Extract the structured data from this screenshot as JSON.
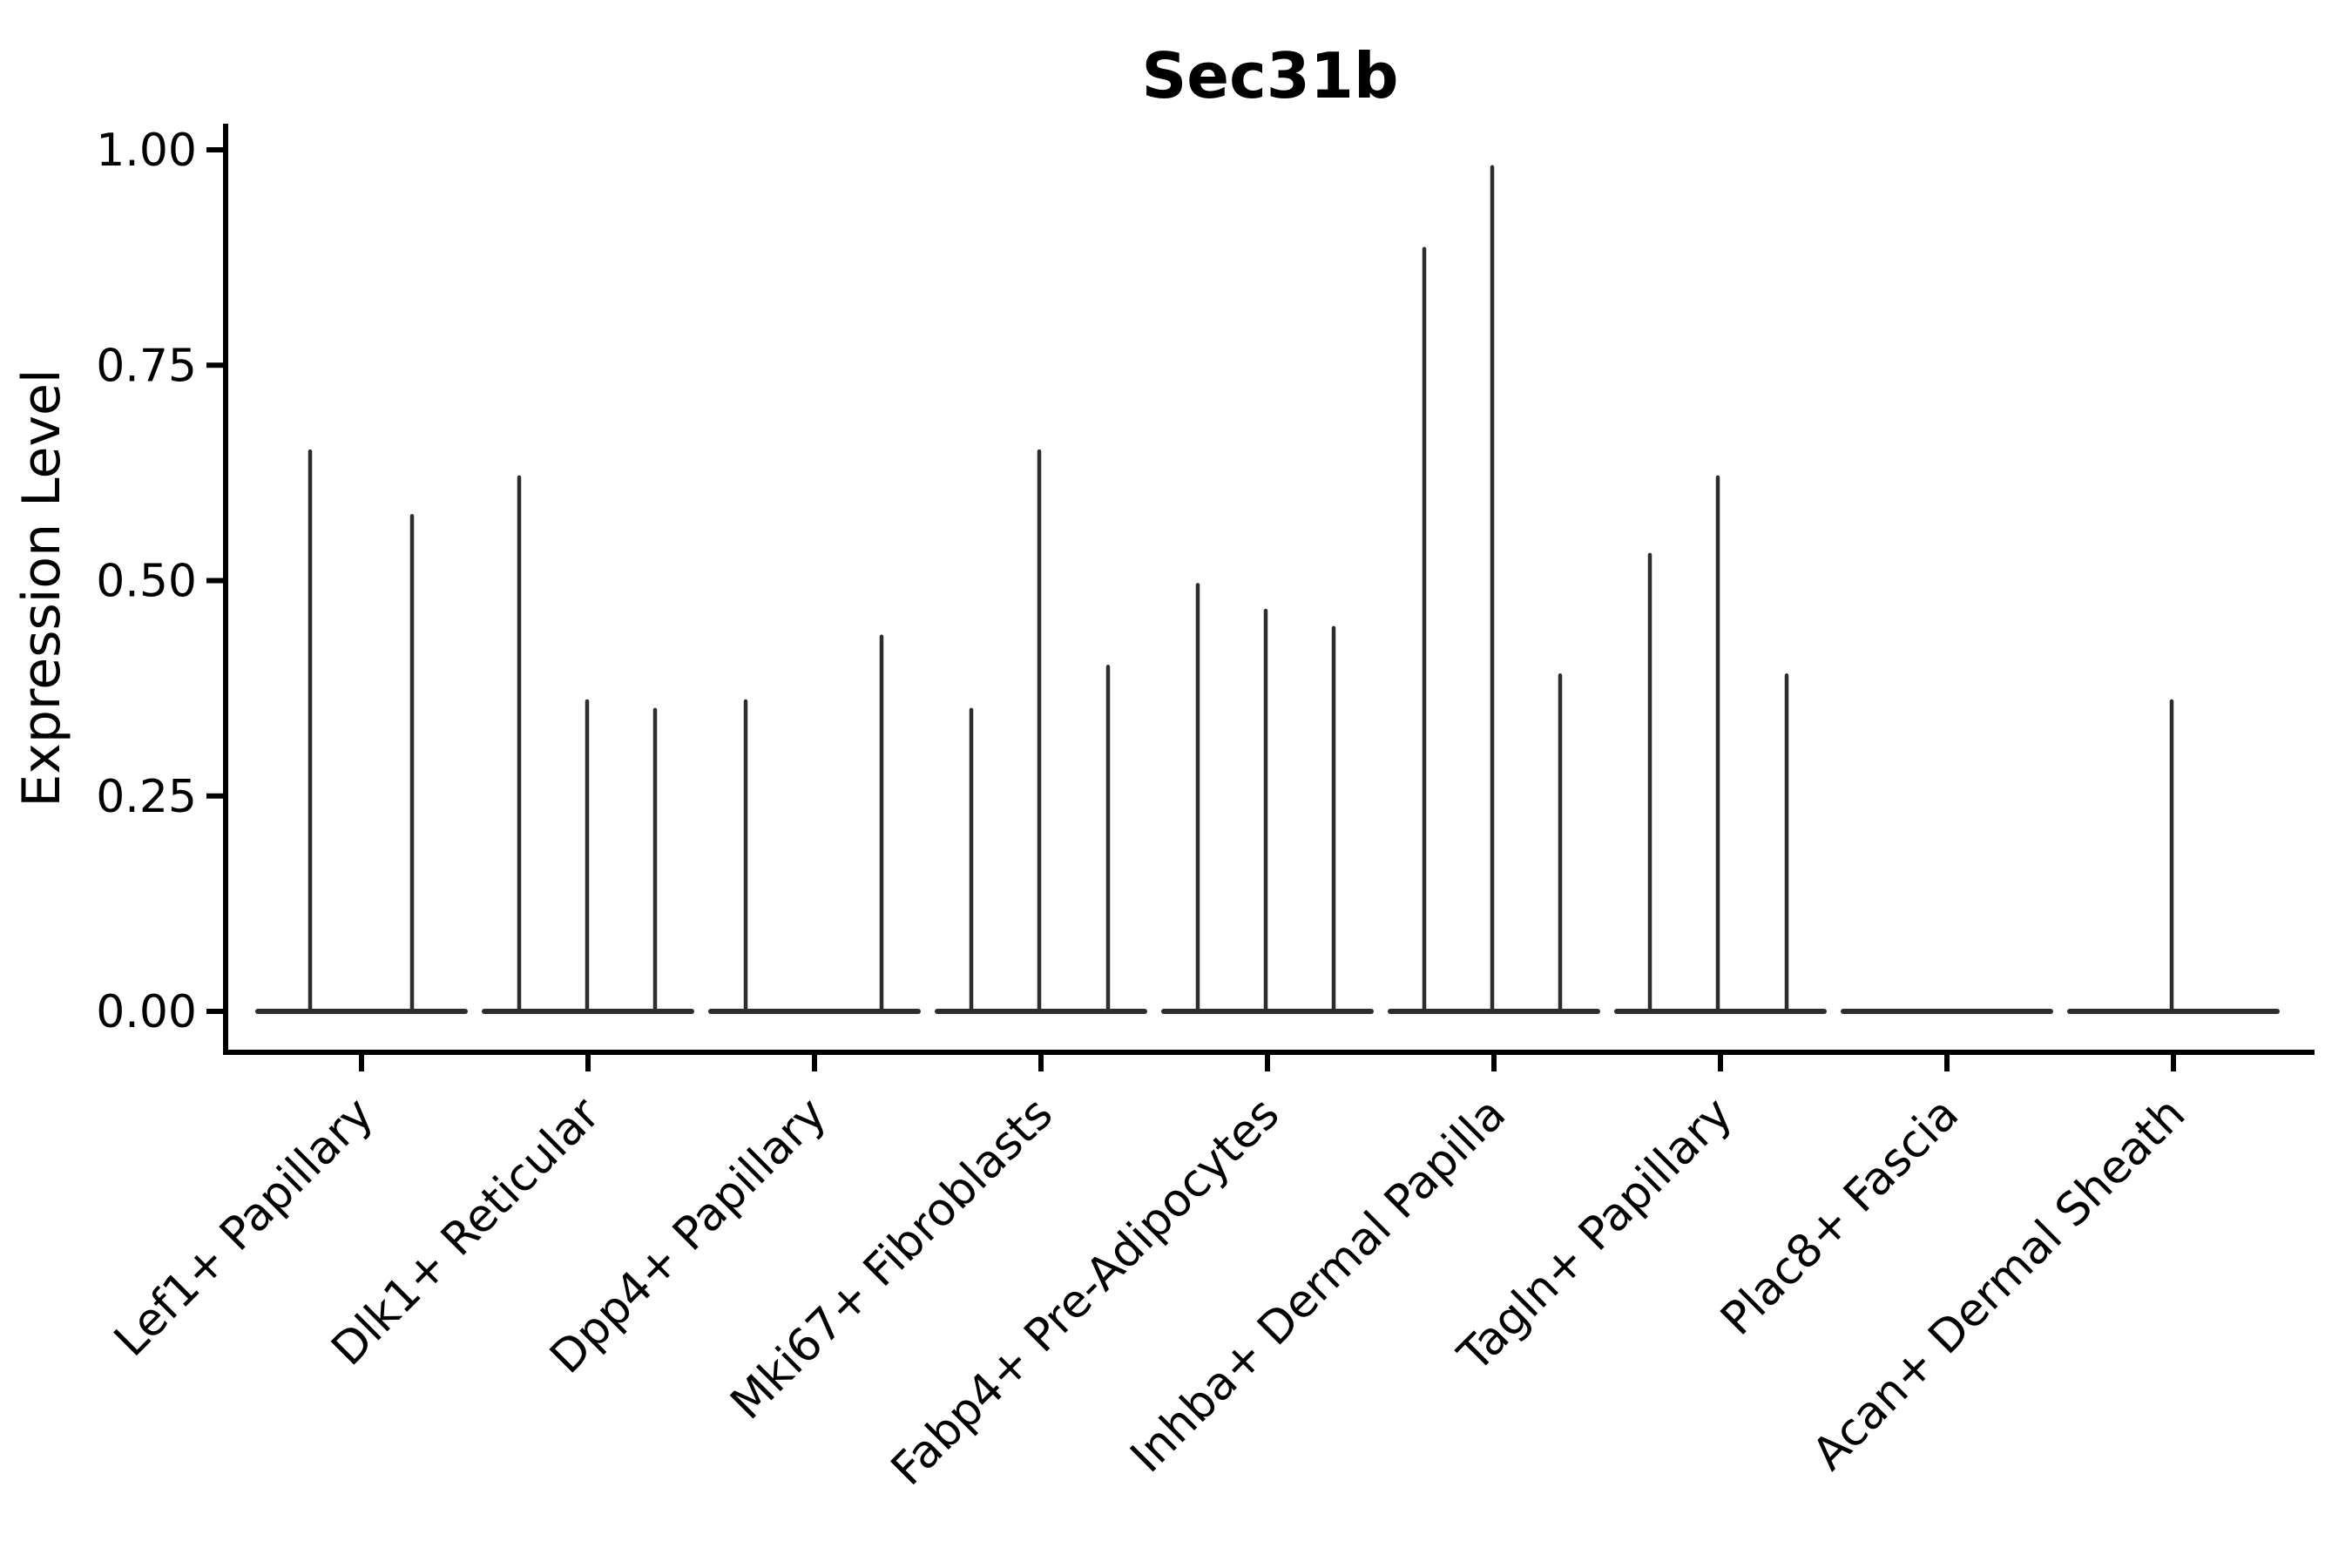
{
  "title": "Sec31b",
  "y_axis": {
    "label": "Expression Level",
    "ticks": [
      {
        "label": "0.00",
        "value": 0.0
      },
      {
        "label": "0.25",
        "value": 0.25
      },
      {
        "label": "0.50",
        "value": 0.5
      },
      {
        "label": "0.75",
        "value": 0.75
      },
      {
        "label": "1.00",
        "value": 1.0
      }
    ]
  },
  "x_axis": {
    "categories": [
      "Lef1+ Papillary",
      "Dlk1+ Reticular",
      "Dpp4+ Papillary",
      "Mki67+ Fibroblasts",
      "Fabp4+ Pre-Adipocytes",
      "Inhba+ Dermal Papilla",
      "Tagln+ Papillary",
      "Plac8+ Fascia",
      "Acan+ Dermal Sheath"
    ]
  },
  "chart_data": {
    "type": "violin",
    "title": "Sec31b",
    "xlabel": "",
    "ylabel": "Expression Level",
    "ylim": [
      0.0,
      1.0
    ],
    "grid": false,
    "legend_position": "none",
    "description": "Collapsed single-cell violins: each category shows a flat density line at expression 0 with thin vertical spikes reaching the peak expression of the few expressing cells.",
    "categories": [
      "Lef1+ Papillary",
      "Dlk1+ Reticular",
      "Dpp4+ Papillary",
      "Mki67+ Fibroblasts",
      "Fabp4+ Pre-Adipocytes",
      "Inhba+ Dermal Papilla",
      "Tagln+ Papillary",
      "Plac8+ Fascia",
      "Acan+ Dermal Sheath"
    ],
    "baseline_value": 0.0,
    "groups": [
      {
        "category": "Lef1+ Papillary",
        "violins": [
          {
            "dx": -59,
            "peak": 0.65
          },
          {
            "dx": 58,
            "peak": 0.575
          }
        ]
      },
      {
        "category": "Dlk1+ Reticular",
        "violins": [
          {
            "dx": -79,
            "peak": 0.62
          },
          {
            "dx": -1,
            "peak": 0.36
          },
          {
            "dx": 77,
            "peak": 0.35
          }
        ]
      },
      {
        "category": "Dpp4+ Papillary",
        "violins": [
          {
            "dx": -79,
            "peak": 0.36
          },
          {
            "dx": 77,
            "peak": 0.435
          }
        ]
      },
      {
        "category": "Mki67+ Fibroblasts",
        "violins": [
          {
            "dx": -80,
            "peak": 0.35
          },
          {
            "dx": -2,
            "peak": 0.65
          },
          {
            "dx": 77,
            "peak": 0.4
          }
        ]
      },
      {
        "category": "Fabp4+ Pre-Adipocytes",
        "violins": [
          {
            "dx": -80,
            "peak": 0.495
          },
          {
            "dx": -2,
            "peak": 0.465
          },
          {
            "dx": 76,
            "peak": 0.445
          }
        ]
      },
      {
        "category": "Inhba+ Dermal Papilla",
        "violins": [
          {
            "dx": -80,
            "peak": 0.885
          },
          {
            "dx": -2,
            "peak": 0.98
          },
          {
            "dx": 76,
            "peak": 0.39
          }
        ]
      },
      {
        "category": "Tagln+ Papillary",
        "violins": [
          {
            "dx": -81,
            "peak": 0.53
          },
          {
            "dx": -3,
            "peak": 0.62
          },
          {
            "dx": 76,
            "peak": 0.39
          }
        ]
      },
      {
        "category": "Plac8+ Fascia",
        "violins": []
      },
      {
        "category": "Acan+ Dermal Sheath",
        "violins": [
          {
            "dx": -2,
            "peak": 0.36
          }
        ]
      }
    ]
  },
  "colors": {
    "violin_line": "#2d2d2d",
    "axis": "#000000",
    "text": "#000000",
    "background": "#ffffff"
  }
}
